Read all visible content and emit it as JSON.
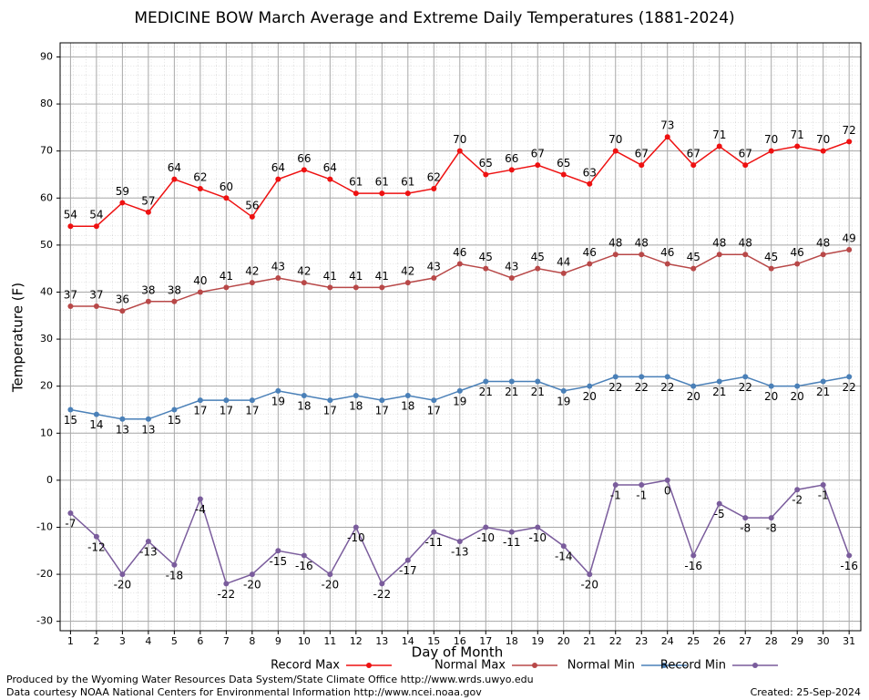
{
  "chart_data": {
    "type": "line",
    "title": "MEDICINE BOW March Average and Extreme Daily Temperatures (1881-2024)",
    "x_label": "Day of Month",
    "y_label": "Temperature (F)",
    "x": [
      1,
      2,
      3,
      4,
      5,
      6,
      7,
      8,
      9,
      10,
      11,
      12,
      13,
      14,
      15,
      16,
      17,
      18,
      19,
      20,
      21,
      22,
      23,
      24,
      25,
      26,
      27,
      28,
      29,
      30,
      31
    ],
    "xlim": [
      0.6,
      31.45
    ],
    "xticks": [
      1,
      2,
      3,
      4,
      5,
      6,
      7,
      8,
      9,
      10,
      11,
      12,
      13,
      14,
      15,
      16,
      17,
      18,
      19,
      20,
      21,
      22,
      23,
      24,
      25,
      26,
      27,
      28,
      29,
      30,
      31
    ],
    "ylim": [
      -32,
      93
    ],
    "yticks": [
      -30,
      -20,
      -10,
      0,
      10,
      20,
      30,
      40,
      50,
      60,
      70,
      80,
      90
    ],
    "grid": true,
    "series": [
      {
        "name": "Record Max",
        "color": "#ee1111",
        "values": [
          54,
          54,
          59,
          57,
          64,
          62,
          60,
          56,
          64,
          66,
          64,
          61,
          61,
          61,
          62,
          70,
          65,
          66,
          67,
          65,
          63,
          70,
          67,
          73,
          67,
          71,
          67,
          70,
          71,
          70,
          72
        ]
      },
      {
        "name": "Normal Max",
        "color": "#b84848",
        "values": [
          37,
          37,
          36,
          38,
          38,
          40,
          41,
          42,
          43,
          42,
          41,
          41,
          41,
          42,
          43,
          46,
          45,
          43,
          45,
          44,
          46,
          48,
          48,
          46,
          45,
          48,
          48,
          45,
          46,
          48,
          49
        ]
      },
      {
        "name": "Normal Min",
        "color": "#4a80b8",
        "values": [
          15,
          14,
          13,
          13,
          15,
          17,
          17,
          17,
          19,
          18,
          17,
          18,
          17,
          18,
          17,
          19,
          21,
          21,
          21,
          19,
          20,
          22,
          22,
          22,
          20,
          21,
          22,
          20,
          20,
          21,
          22
        ]
      },
      {
        "name": "Record Min",
        "color": "#7a5c9c",
        "values": [
          -7,
          -12,
          -20,
          -13,
          -18,
          -4,
          -22,
          -20,
          -15,
          -16,
          -20,
          -10,
          -22,
          -17,
          -11,
          -13,
          -10,
          -11,
          -10,
          -14,
          -20,
          -1,
          -1,
          0,
          -16,
          -5,
          -8,
          -8,
          -2,
          -1,
          -16
        ]
      }
    ],
    "footer_left": [
      "Produced by the Wyoming Water Resources Data System/State Climate Office http://www.wrds.uwyo.edu",
      "Data courtesy NOAA National Centers for Environmental Information http://www.ncei.noaa.gov"
    ],
    "footer_right": "Created:  25-Sep-2024"
  }
}
